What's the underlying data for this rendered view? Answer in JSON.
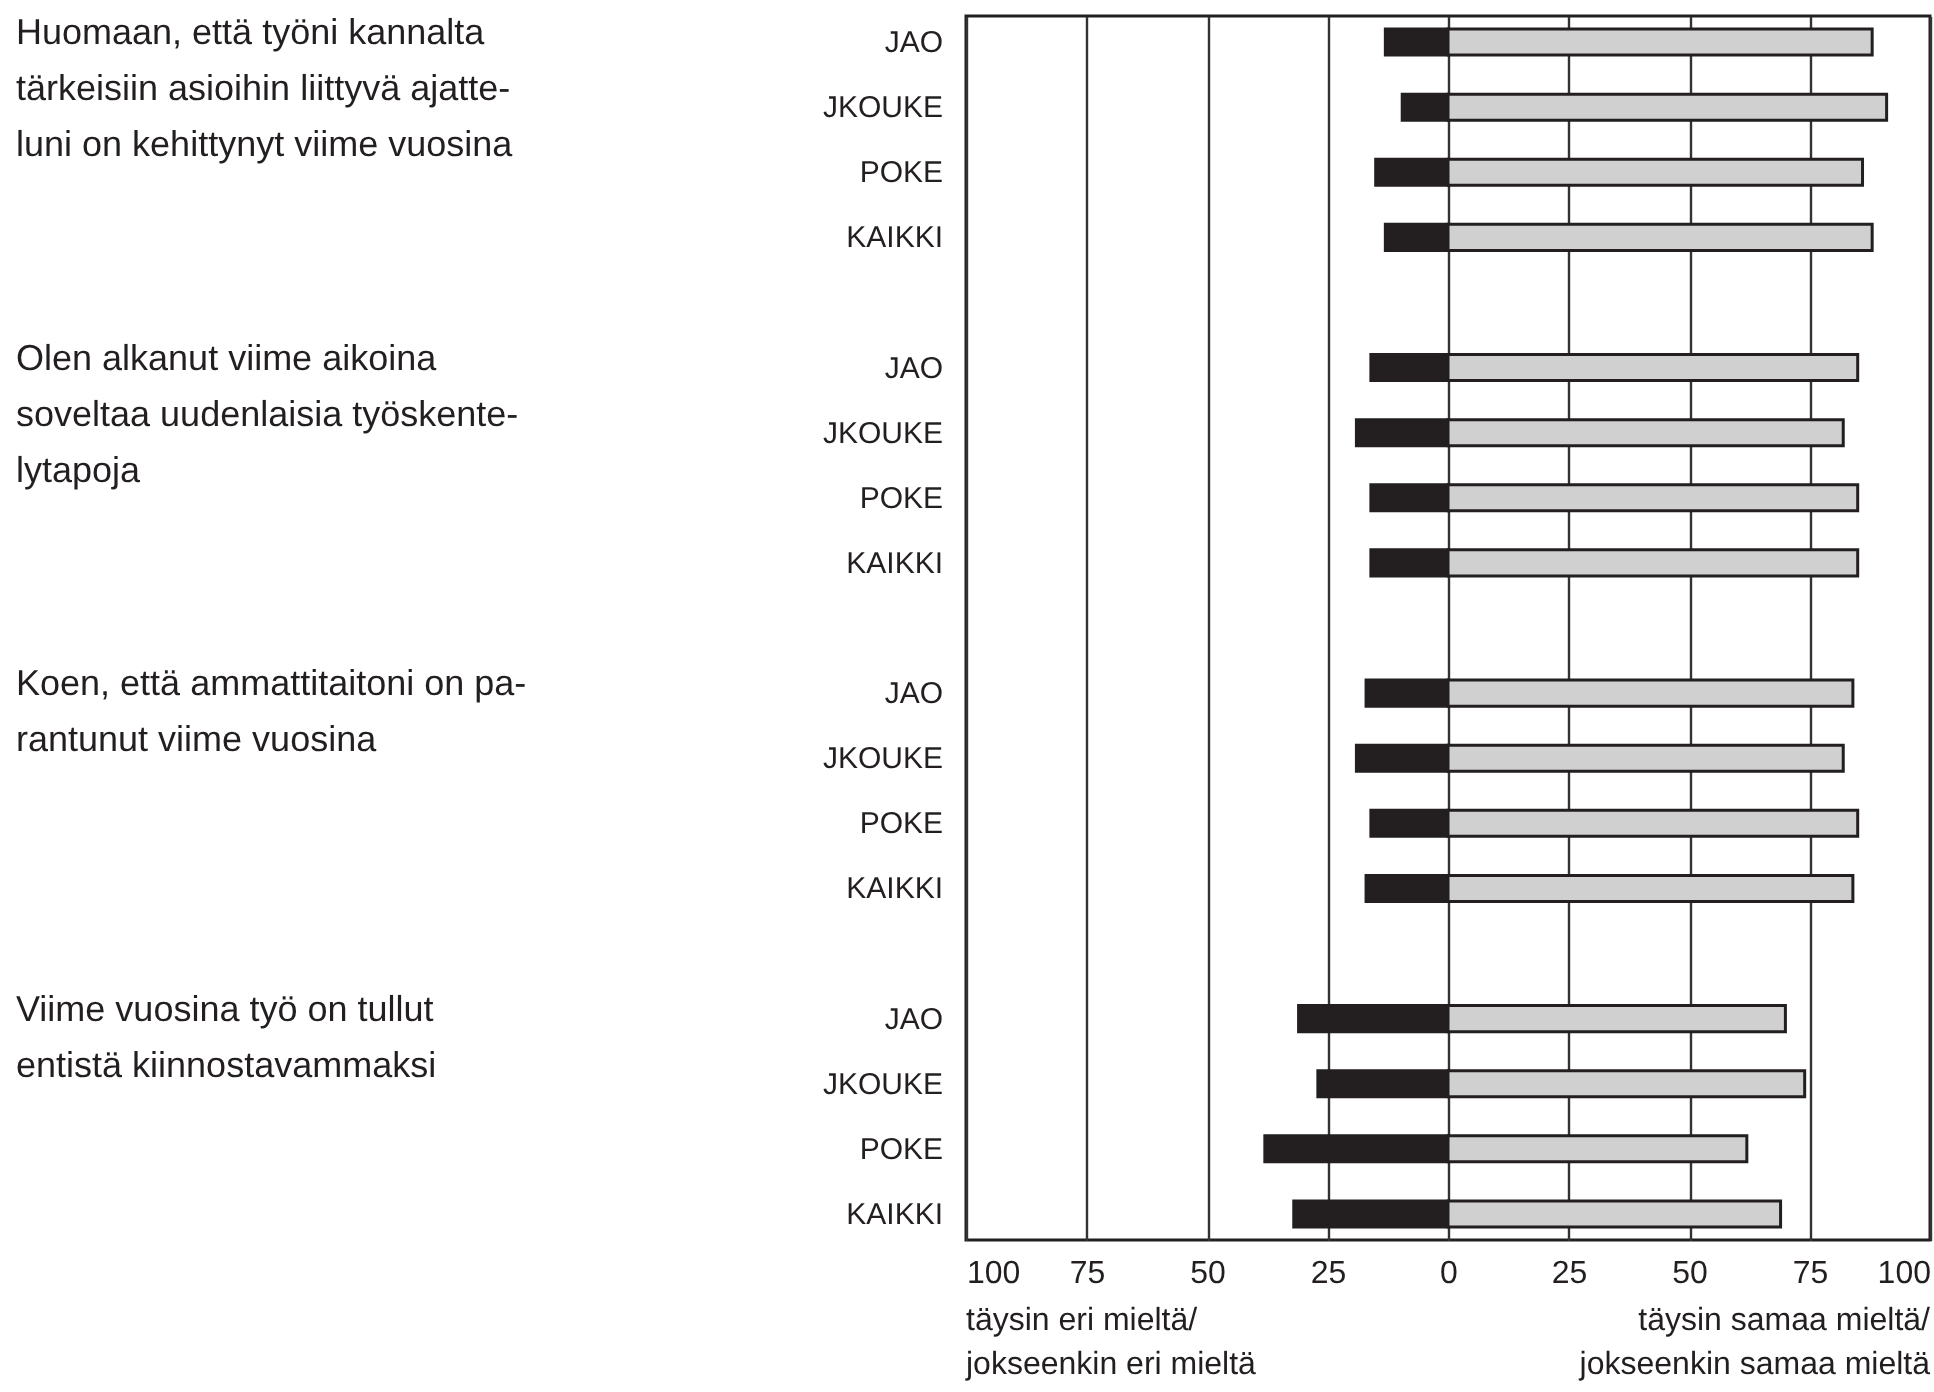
{
  "chart_data": {
    "type": "bar",
    "orientation": "horizontal",
    "categories": [
      "JAO",
      "JKOUKE",
      "POKE",
      "KAIKKI",
      null,
      "JAO",
      "JKOUKE",
      "POKE",
      "KAIKKI",
      null,
      "JAO",
      "JKOUKE",
      "POKE",
      "KAIKKI",
      null,
      "JAO",
      "JKOUKE",
      "POKE",
      "KAIKKI"
    ],
    "series": [
      {
        "color": "#231f20",
        "values": [
          -13,
          -9.5,
          -15,
          -13,
          null,
          -16,
          -19,
          -16,
          -16,
          null,
          -17,
          -19,
          -16,
          -17,
          null,
          -31,
          -27,
          -38,
          -32
        ]
      },
      {
        "color": "#d0d0d0",
        "values": [
          88,
          91,
          86,
          88,
          null,
          85,
          82,
          85,
          85,
          null,
          84,
          82,
          85,
          84,
          null,
          70,
          74,
          62,
          69
        ]
      }
    ],
    "xlim": [
      -100,
      100
    ],
    "xticks": [
      {
        "value": -100,
        "label": "100"
      },
      {
        "value": -75,
        "label": "75"
      },
      {
        "value": -50,
        "label": "50"
      },
      {
        "value": -25,
        "label": "25"
      },
      0,
      25,
      50,
      75,
      100
    ],
    "grid": "x",
    "stacked": true,
    "annotations": [
      "Huomaan, että työni kannalta\ntärkeisiin asioihin liittyvä ajatte-\nluni on kehittynyt viime vuosina",
      "Olen alkanut viime aikoina\nsoveltaa uudenlaisia työskente-\nlytapoja",
      "Koen, että ammattitaitoni on pa-\nrantunut viime vuosina",
      "Viime vuosina työ on tullut\nentistä kiinnostavammaksi",
      "täysin eri mieltä/\njokseenkin eri mieltä",
      "täysin samaa mieltä/\njokseenkin samaa mieltä"
    ]
  }
}
